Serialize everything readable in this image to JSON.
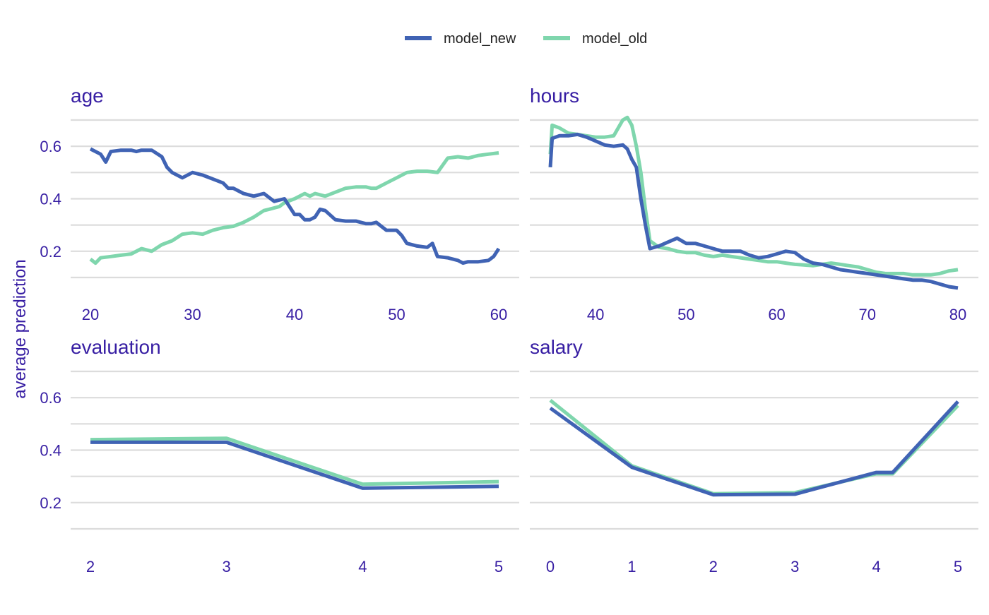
{
  "chart_data": {
    "type": "line",
    "ylabel": "average prediction",
    "grid": true,
    "legend_placement": "top-center",
    "legend": [
      {
        "name": "model_new",
        "color": "#4063b4"
      },
      {
        "name": "model_old",
        "color": "#7fd6ad"
      }
    ],
    "y_ticks": [
      0.2,
      0.4,
      0.6
    ],
    "ylim": [
      0.05,
      0.72
    ],
    "panels": [
      {
        "title": "age",
        "x_ticks": [
          20,
          30,
          40,
          50,
          60
        ],
        "xlim": [
          20,
          60
        ],
        "series": [
          {
            "name": "model_new",
            "x": [
              20,
              21,
              21.5,
              22,
              23,
              24,
              24.5,
              25,
              26,
              27,
              27.5,
              28,
              29,
              30,
              31,
              32,
              33,
              33.5,
              34,
              35,
              36,
              37,
              38,
              39,
              40,
              40.5,
              41,
              41.5,
              42,
              42.5,
              43,
              44,
              45,
              46,
              47,
              47.5,
              48,
              49,
              50,
              50.5,
              51,
              52,
              53,
              53.5,
              54,
              55,
              56,
              56.5,
              57,
              58,
              59,
              59.5,
              60
            ],
            "y": [
              0.59,
              0.57,
              0.54,
              0.58,
              0.585,
              0.585,
              0.58,
              0.585,
              0.585,
              0.56,
              0.52,
              0.5,
              0.48,
              0.5,
              0.49,
              0.475,
              0.46,
              0.44,
              0.44,
              0.42,
              0.41,
              0.42,
              0.39,
              0.4,
              0.34,
              0.34,
              0.32,
              0.32,
              0.33,
              0.36,
              0.355,
              0.32,
              0.315,
              0.315,
              0.305,
              0.305,
              0.31,
              0.28,
              0.28,
              0.26,
              0.23,
              0.22,
              0.215,
              0.23,
              0.18,
              0.175,
              0.165,
              0.155,
              0.16,
              0.16,
              0.165,
              0.18,
              0.21
            ]
          },
          {
            "name": "model_old",
            "x": [
              20,
              20.5,
              21,
              22,
              23,
              24,
              25,
              26,
              27,
              28,
              29,
              30,
              31,
              32,
              33,
              34,
              35,
              35.5,
              36,
              37,
              37.5,
              38,
              38.5,
              39,
              40,
              41,
              41.5,
              42,
              43,
              44,
              45,
              46,
              47,
              47.5,
              48,
              49,
              50,
              51,
              52,
              53,
              54,
              55,
              56,
              57,
              58,
              59,
              60
            ],
            "y": [
              0.17,
              0.155,
              0.175,
              0.18,
              0.185,
              0.19,
              0.21,
              0.2,
              0.225,
              0.24,
              0.265,
              0.27,
              0.265,
              0.28,
              0.29,
              0.295,
              0.31,
              0.32,
              0.33,
              0.355,
              0.36,
              0.365,
              0.37,
              0.385,
              0.4,
              0.42,
              0.41,
              0.42,
              0.41,
              0.425,
              0.44,
              0.445,
              0.445,
              0.44,
              0.44,
              0.46,
              0.48,
              0.5,
              0.505,
              0.505,
              0.5,
              0.555,
              0.56,
              0.555,
              0.565,
              0.57,
              0.575
            ]
          }
        ]
      },
      {
        "title": "hours",
        "x_ticks": [
          40,
          50,
          60,
          70,
          80
        ],
        "xlim": [
          35,
          80
        ],
        "series": [
          {
            "name": "model_new",
            "x": [
              35,
              35.2,
              36,
              37,
              38,
              39,
              40,
              41,
              42,
              43,
              43.5,
              44,
              44.5,
              45,
              45.5,
              46,
              47,
              48,
              49,
              50,
              51,
              52,
              53,
              54,
              55,
              56,
              57,
              58,
              59,
              60,
              61,
              62,
              63,
              64,
              65,
              66,
              67,
              68,
              69,
              70,
              71,
              72,
              73,
              74,
              75,
              76,
              77,
              78,
              79,
              80
            ],
            "y": [
              0.52,
              0.63,
              0.64,
              0.64,
              0.645,
              0.635,
              0.62,
              0.605,
              0.6,
              0.605,
              0.59,
              0.55,
              0.52,
              0.4,
              0.3,
              0.21,
              0.22,
              0.235,
              0.25,
              0.23,
              0.23,
              0.22,
              0.21,
              0.2,
              0.2,
              0.2,
              0.185,
              0.175,
              0.18,
              0.19,
              0.2,
              0.195,
              0.17,
              0.155,
              0.15,
              0.14,
              0.13,
              0.125,
              0.12,
              0.115,
              0.11,
              0.105,
              0.1,
              0.095,
              0.09,
              0.09,
              0.085,
              0.075,
              0.065,
              0.06
            ]
          },
          {
            "name": "model_old",
            "x": [
              35,
              35.2,
              36,
              37,
              38,
              39,
              40,
              41,
              42,
              43,
              43.5,
              44,
              44.5,
              45,
              45.5,
              46,
              47,
              48,
              49,
              50,
              51,
              52,
              53,
              54,
              55,
              56,
              57,
              58,
              59,
              60,
              61,
              62,
              63,
              64,
              65,
              66,
              67,
              68,
              69,
              70,
              71,
              72,
              73,
              74,
              75,
              76,
              77,
              78,
              79,
              80
            ],
            "y": [
              0.57,
              0.68,
              0.67,
              0.65,
              0.645,
              0.64,
              0.635,
              0.635,
              0.64,
              0.7,
              0.71,
              0.68,
              0.6,
              0.5,
              0.36,
              0.24,
              0.215,
              0.21,
              0.2,
              0.195,
              0.195,
              0.185,
              0.18,
              0.185,
              0.18,
              0.175,
              0.17,
              0.165,
              0.16,
              0.16,
              0.155,
              0.15,
              0.148,
              0.145,
              0.15,
              0.155,
              0.15,
              0.145,
              0.14,
              0.13,
              0.12,
              0.115,
              0.115,
              0.115,
              0.11,
              0.11,
              0.11,
              0.115,
              0.125,
              0.13
            ]
          }
        ]
      },
      {
        "title": "evaluation",
        "x_ticks": [
          2,
          3,
          4,
          5
        ],
        "xlim": [
          2,
          5
        ],
        "series": [
          {
            "name": "model_new",
            "x": [
              2,
              3,
              4,
              5
            ],
            "y": [
              0.43,
              0.43,
              0.255,
              0.262
            ]
          },
          {
            "name": "model_old",
            "x": [
              2,
              3,
              4,
              5
            ],
            "y": [
              0.44,
              0.445,
              0.27,
              0.28
            ]
          }
        ]
      },
      {
        "title": "salary",
        "x_ticks": [
          0,
          1,
          2,
          3,
          4,
          5
        ],
        "xlim": [
          0,
          5
        ],
        "series": [
          {
            "name": "model_new",
            "x": [
              0,
              1,
              2,
              3,
              4,
              4.2,
              5
            ],
            "y": [
              0.56,
              0.335,
              0.23,
              0.232,
              0.315,
              0.315,
              0.585
            ]
          },
          {
            "name": "model_old",
            "x": [
              0,
              1,
              2,
              3,
              4,
              4.2,
              5
            ],
            "y": [
              0.59,
              0.34,
              0.234,
              0.238,
              0.31,
              0.31,
              0.57
            ]
          }
        ]
      }
    ]
  }
}
